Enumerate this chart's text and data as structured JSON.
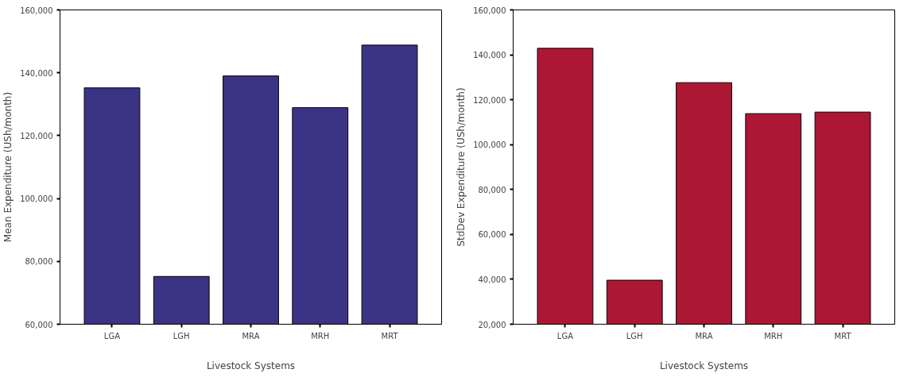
{
  "chart_data": [
    {
      "type": "bar",
      "xlabel": "Livestock Systems",
      "ylabel": "Mean Expenditure (USh/month)",
      "categories": [
        "LGA",
        "LGH",
        "MRA",
        "MRH",
        "MRT"
      ],
      "values": [
        135200,
        75200,
        139000,
        128900,
        148800
      ],
      "color": "#3b3484",
      "ylim": [
        60000,
        160000
      ],
      "yticks": [
        {
          "value": 60000,
          "label": "60,000"
        },
        {
          "value": 80000,
          "label": "80,000"
        },
        {
          "value": 100000,
          "label": "100,000"
        },
        {
          "value": 120000,
          "label": "120,000"
        },
        {
          "value": 140000,
          "label": "140,000"
        },
        {
          "value": 160000,
          "label": "160,000"
        }
      ],
      "grid": false
    },
    {
      "type": "bar",
      "xlabel": "Livestock Systems",
      "ylabel": "StdDev Expenditure (USh/month)",
      "categories": [
        "LGA",
        "LGH",
        "MRA",
        "MRH",
        "MRT"
      ],
      "values": [
        142900,
        39600,
        127600,
        113800,
        114500
      ],
      "color": "#ac1834",
      "ylim": [
        20000,
        160000
      ],
      "yticks": [
        {
          "value": 20000,
          "label": "20,000"
        },
        {
          "value": 40000,
          "label": "40,000"
        },
        {
          "value": 60000,
          "label": "60,000"
        },
        {
          "value": 80000,
          "label": "80,000"
        },
        {
          "value": 100000,
          "label": "100,000"
        },
        {
          "value": 120000,
          "label": "120,000"
        },
        {
          "value": 140000,
          "label": "140,000"
        },
        {
          "value": 160000,
          "label": "160,000"
        }
      ],
      "grid": false
    }
  ]
}
